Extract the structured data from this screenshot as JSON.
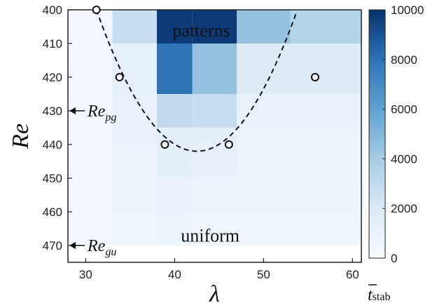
{
  "chart_data": {
    "type": "heatmap",
    "xlabel": "λ",
    "ylabel": "Re",
    "colorbar_label": {
      "base": "t",
      "sub": "stab"
    },
    "xlim": [
      28,
      61
    ],
    "ylim": [
      400,
      475
    ],
    "y_reversed": true,
    "x_ticks": [
      "30",
      "40",
      "50",
      "60"
    ],
    "x_tick_values": [
      30,
      40,
      50,
      60
    ],
    "y_ticks": [
      "400",
      "410",
      "420",
      "430",
      "440",
      "450",
      "460",
      "470"
    ],
    "y_tick_values": [
      400,
      410,
      420,
      430,
      440,
      450,
      460,
      470
    ],
    "colorbar_ticks": [
      "0",
      "2000",
      "4000",
      "6000",
      "8000",
      "10000"
    ],
    "colorbar_tick_values": [
      0,
      2000,
      4000,
      6000,
      8000,
      10000
    ],
    "colorbar_range": [
      0,
      10000
    ],
    "colorscale": "Blues",
    "cell_x_edges": [
      28,
      33,
      38,
      42,
      47,
      53,
      61
    ],
    "cell_y_edges": [
      400,
      410,
      425,
      435,
      440,
      450,
      460,
      470
    ],
    "cells": [
      [
        300,
        2800,
        9700,
        9700,
        4500,
        3500
      ],
      [
        300,
        1200,
        8000,
        4500,
        1800,
        1800
      ],
      [
        300,
        1000,
        3000,
        2800,
        1000,
        1000
      ],
      [
        300,
        900,
        1500,
        1300,
        800,
        800
      ],
      [
        300,
        800,
        1300,
        1100,
        800,
        800
      ],
      [
        300,
        700,
        900,
        800,
        700,
        700
      ],
      [
        300,
        600,
        700,
        600,
        600,
        600
      ]
    ],
    "boundary_points": [
      {
        "x": 31.2,
        "y": 400
      },
      {
        "x": 33.8,
        "y": 420
      },
      {
        "x": 38.9,
        "y": 440
      },
      {
        "x": 46.1,
        "y": 440
      },
      {
        "x": 55.8,
        "y": 420
      }
    ],
    "boundary_curve": {
      "type": "parabola",
      "vertex_x": 42.5,
      "vertex_y": 442
    },
    "annotations": [
      {
        "text": "patterns",
        "x": 43,
        "y": 406
      },
      {
        "text": "uniform",
        "x": 44,
        "y": 467
      }
    ],
    "markers": [
      {
        "base": "Re",
        "sub": "pg",
        "y": 430
      },
      {
        "base": "Re",
        "sub": "gu",
        "y": 470
      }
    ]
  }
}
